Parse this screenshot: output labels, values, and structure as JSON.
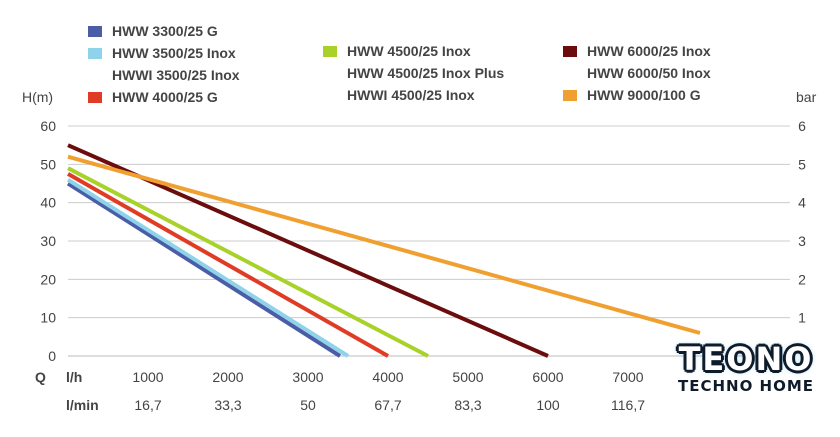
{
  "chart_data": {
    "type": "line",
    "title": "",
    "y_left_label": "H(m)",
    "y_right_label": "bar",
    "x_label_flow_hour": "l/h",
    "x_label_flow_min": "l/min",
    "x_title": "Q",
    "y_left_ticks": [
      "60",
      "50",
      "40",
      "30",
      "20",
      "10",
      "0"
    ],
    "y_right_ticks": [
      "6",
      "5",
      "4",
      "3",
      "2",
      "1"
    ],
    "x_ticks_hour": [
      "1000",
      "2000",
      "3000",
      "4000",
      "5000",
      "6000",
      "7000"
    ],
    "x_ticks_min": [
      "16,7",
      "33,3",
      "50",
      "67,7",
      "83,3",
      "100",
      "116,7"
    ],
    "xlim": [
      0,
      9000
    ],
    "ylim": [
      0,
      60
    ],
    "grid": "horizontal",
    "legend": [
      {
        "label": "HWW 3300/25 G",
        "color": "#4a5ea8"
      },
      {
        "label": "HWW 3500/25 Inox",
        "color": "#8fd3ea"
      },
      {
        "label": "HWWI 3500/25 Inox",
        "color": ""
      },
      {
        "label": "HWW 4000/25 G",
        "color": "#e03b24"
      },
      {
        "label": "HWW 4500/25 Inox",
        "color": "#a8d22a"
      },
      {
        "label": "HWW 4500/25 Inox Plus",
        "color": ""
      },
      {
        "label": "HWWI 4500/25 Inox",
        "color": ""
      },
      {
        "label": "HWW 6000/25 Inox",
        "color": "#6b0d0d"
      },
      {
        "label": "HWW 6000/50 Inox",
        "color": ""
      },
      {
        "label": "HWW 9000/100 G",
        "color": "#f0a030"
      }
    ],
    "series": [
      {
        "name": "HWW 3300/25 G",
        "color": "#4a5ea8",
        "x": [
          0,
          3400
        ],
        "y": [
          45,
          0
        ]
      },
      {
        "name": "HWW 3500/25 Inox",
        "color": "#8fd3ea",
        "x": [
          0,
          3500
        ],
        "y": [
          46,
          0
        ]
      },
      {
        "name": "HWW 4000/25 G",
        "color": "#e03b24",
        "x": [
          0,
          4000
        ],
        "y": [
          47.5,
          0
        ]
      },
      {
        "name": "HWW 4500/25 Inox",
        "color": "#a8d22a",
        "x": [
          0,
          4500
        ],
        "y": [
          49,
          0
        ]
      },
      {
        "name": "HWW 6000/25 Inox",
        "color": "#6b0d0d",
        "x": [
          0,
          6000
        ],
        "y": [
          55,
          0
        ]
      },
      {
        "name": "HWW 9000/100 G",
        "color": "#f0a030",
        "x": [
          0,
          7900
        ],
        "y": [
          52,
          6
        ]
      }
    ]
  },
  "logo": {
    "word": "TEONO",
    "subtitle": "TECHNO HOME"
  }
}
